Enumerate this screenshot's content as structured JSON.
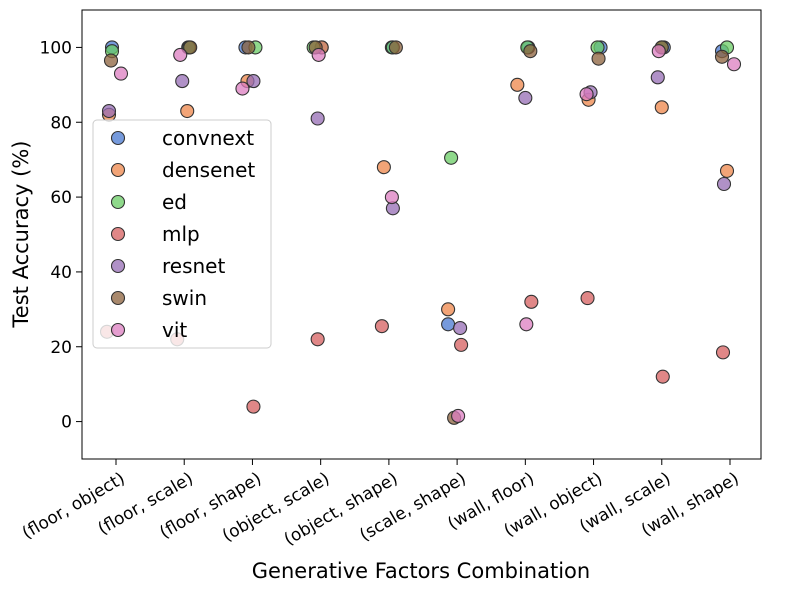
{
  "chart_data": {
    "type": "scatter",
    "title": "",
    "xlabel": "Generative Factors Combination",
    "ylabel": "Test Accuracy (%)",
    "ylim": [
      -10,
      110
    ],
    "yticks": [
      0,
      20,
      40,
      60,
      80,
      100
    ],
    "legend_position": "center-left",
    "categories": [
      "(floor, object)",
      "(floor, scale)",
      "(floor, shape)",
      "(object, scale)",
      "(object, shape)",
      "(scale, shape)",
      "(wall, floor)",
      "(wall, object)",
      "(wall, scale)",
      "(wall, shape)"
    ],
    "series": [
      {
        "name": "convnext",
        "color": "#4878d0",
        "values": [
          100,
          100,
          100,
          100,
          100,
          26,
          100,
          100,
          100,
          99
        ]
      },
      {
        "name": "densenet",
        "color": "#ee854a",
        "values": [
          82,
          83,
          91,
          100,
          68,
          30,
          90,
          86,
          84,
          67
        ]
      },
      {
        "name": "ed",
        "color": "#6acc64",
        "values": [
          99,
          100,
          100,
          100,
          100,
          70.5,
          100,
          100,
          100,
          100
        ]
      },
      {
        "name": "mlp",
        "color": "#d65f5f",
        "values": [
          24,
          22,
          4,
          22,
          25.5,
          20.5,
          32,
          33,
          12,
          18.5
        ]
      },
      {
        "name": "resnet",
        "color": "#956cb4",
        "values": [
          83,
          91,
          91,
          81,
          57,
          25,
          86.5,
          88,
          92,
          63.5
        ]
      },
      {
        "name": "swin",
        "color": "#8c613c",
        "values": [
          96.5,
          100,
          100,
          100,
          100,
          1,
          99,
          97,
          100,
          97.5
        ]
      },
      {
        "name": "vit",
        "color": "#dc7ec0",
        "values": [
          93,
          98,
          89,
          98,
          60,
          1.5,
          26,
          87.5,
          99,
          95.5
        ]
      }
    ],
    "jitter": [
      [
        -4,
        4,
        -7,
        1,
        3,
        -9,
        3,
        7,
        2,
        -8
      ],
      [
        -7,
        3,
        -5,
        1,
        -5,
        -9,
        -8,
        -5,
        0,
        -3
      ],
      [
        -4,
        5,
        3,
        -7,
        4,
        -6,
        2,
        4,
        0,
        -3
      ],
      [
        -9,
        -7,
        1,
        -3,
        -7,
        4,
        6,
        -6,
        1,
        -7
      ],
      [
        -7,
        -2,
        1,
        -3,
        4,
        3,
        0,
        -3,
        -4,
        -6
      ],
      [
        -5,
        6,
        -4,
        -5,
        7,
        -3,
        5,
        5,
        0,
        -8
      ],
      [
        5,
        -4,
        -10,
        -2,
        3,
        1,
        1,
        -7,
        -3,
        4
      ]
    ]
  }
}
